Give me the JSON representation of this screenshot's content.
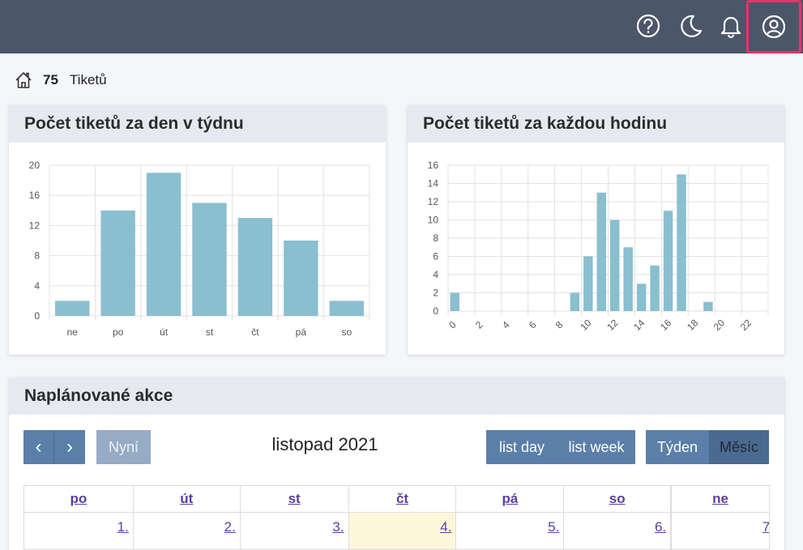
{
  "topbar": {
    "icons": [
      "help-icon",
      "dark-mode-moon-icon",
      "notifications-bell-icon",
      "user-account-icon"
    ]
  },
  "breadcrumb": {
    "count": "75",
    "label": "Tiketů"
  },
  "cards": {
    "weekday_title": "Počet tiketů za den v týdnu",
    "hour_title": "Počet tiketů za každou hodinu",
    "calendar_title": "Naplánované akce"
  },
  "chart_data": [
    {
      "type": "bar",
      "title": "Počet tiketů za den v týdnu",
      "categories": [
        "ne",
        "po",
        "út",
        "st",
        "čt",
        "pá",
        "so"
      ],
      "values": [
        2,
        14,
        19,
        15,
        13,
        10,
        2
      ],
      "ylim": [
        0,
        20
      ],
      "yticks": [
        0,
        4,
        8,
        12,
        16,
        20
      ],
      "grid": true,
      "color": "#8abfcf"
    },
    {
      "type": "bar",
      "title": "Počet tiketů za každou hodinu",
      "categories": [
        "0",
        "1",
        "2",
        "3",
        "4",
        "5",
        "6",
        "7",
        "8",
        "9",
        "10",
        "11",
        "12",
        "13",
        "14",
        "15",
        "16",
        "17",
        "18",
        "19",
        "20",
        "21",
        "22",
        "23"
      ],
      "xtick_labels": [
        "0",
        "2",
        "4",
        "6",
        "8",
        "10",
        "12",
        "14",
        "16",
        "18",
        "20",
        "22"
      ],
      "values": [
        2,
        0,
        0,
        0,
        0,
        0,
        0,
        0,
        0,
        2,
        6,
        13,
        10,
        7,
        3,
        5,
        11,
        15,
        0,
        1,
        0,
        0,
        0,
        0
      ],
      "ylim": [
        0,
        16
      ],
      "yticks": [
        0,
        2,
        4,
        6,
        8,
        10,
        12,
        14,
        16
      ],
      "grid": true,
      "color": "#8abfcf"
    }
  ],
  "calendar": {
    "prev_label": "‹",
    "next_label": "›",
    "today_label": "Nyní",
    "month_title": "listopad 2021",
    "list_day_label": "list day",
    "list_week_label": "list week",
    "week_label": "Týden",
    "month_label": "Měsíc",
    "weekdays": [
      "po",
      "út",
      "st",
      "čt",
      "pá",
      "so",
      "ne"
    ],
    "first_row": [
      "1.",
      "2.",
      "3.",
      "4.",
      "5.",
      "6.",
      "7."
    ]
  },
  "colors": {
    "topbar": "#4b5668",
    "highlight_border": "#e8336b",
    "button": "#5b7fa8",
    "bar": "#8abfcf",
    "today": "#fcf7da"
  }
}
